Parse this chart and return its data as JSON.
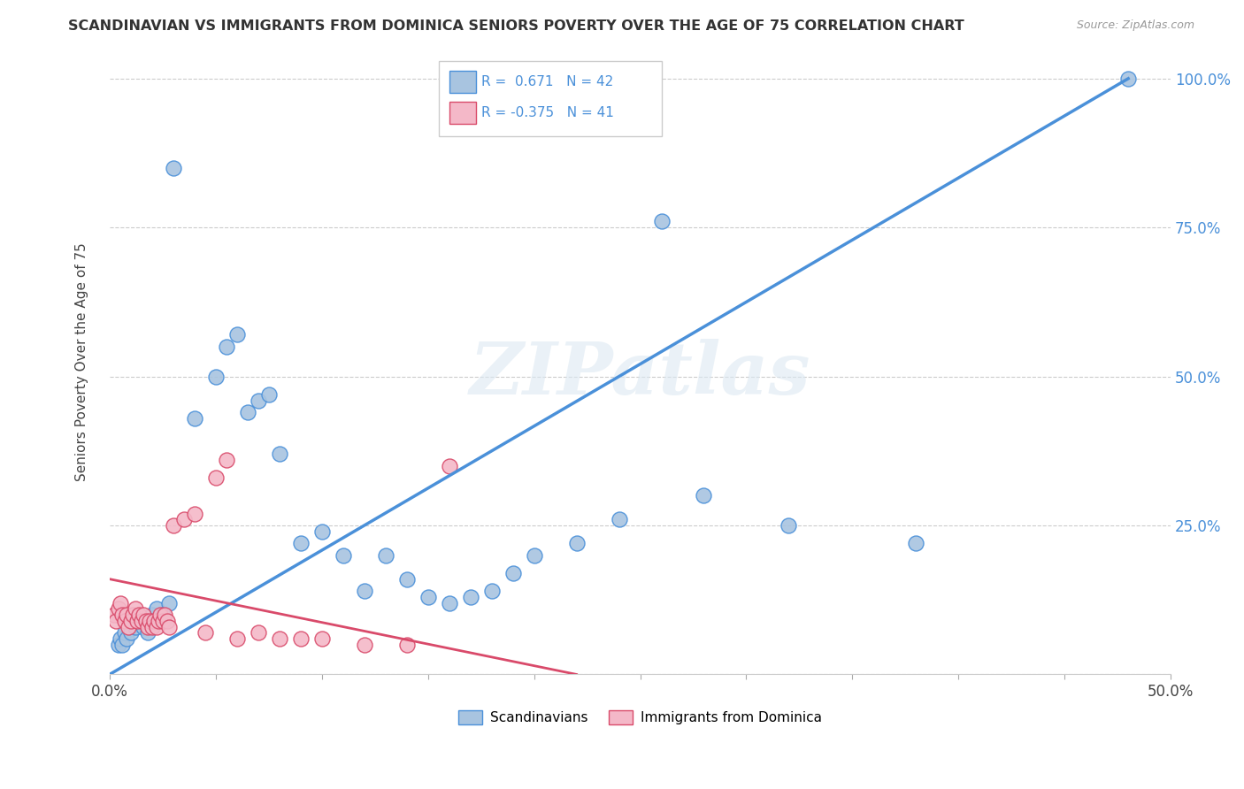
{
  "title": "SCANDINAVIAN VS IMMIGRANTS FROM DOMINICA SENIORS POVERTY OVER THE AGE OF 75 CORRELATION CHART",
  "source": "Source: ZipAtlas.com",
  "ylabel": "Seniors Poverty Over the Age of 75",
  "xlim": [
    0.0,
    0.5
  ],
  "ylim": [
    0.0,
    1.05
  ],
  "xticks": [
    0.0,
    0.05,
    0.1,
    0.15,
    0.2,
    0.25,
    0.3,
    0.35,
    0.4,
    0.45,
    0.5
  ],
  "xticklabels": [
    "0.0%",
    "",
    "",
    "",
    "",
    "",
    "",
    "",
    "",
    "",
    "50.0%"
  ],
  "ytick_positions": [
    0.0,
    0.25,
    0.5,
    0.75,
    1.0
  ],
  "yticklabels": [
    "",
    "25.0%",
    "50.0%",
    "75.0%",
    "100.0%"
  ],
  "watermark": "ZIPatlas",
  "blue_R": 0.671,
  "blue_N": 42,
  "pink_R": -0.375,
  "pink_N": 41,
  "blue_color": "#a8c4e0",
  "pink_color": "#f4b8c8",
  "blue_line_color": "#4a90d9",
  "pink_line_color": "#d94a6a",
  "legend_blue_label": "Scandinavians",
  "legend_pink_label": "Immigrants from Dominica",
  "blue_scatter_x": [
    0.004,
    0.005,
    0.006,
    0.007,
    0.008,
    0.01,
    0.012,
    0.014,
    0.016,
    0.018,
    0.02,
    0.022,
    0.025,
    0.028,
    0.03,
    0.04,
    0.05,
    0.055,
    0.06,
    0.065,
    0.07,
    0.075,
    0.08,
    0.09,
    0.1,
    0.11,
    0.12,
    0.13,
    0.14,
    0.15,
    0.16,
    0.17,
    0.18,
    0.19,
    0.2,
    0.22,
    0.24,
    0.26,
    0.28,
    0.32,
    0.38,
    0.48
  ],
  "blue_scatter_y": [
    0.05,
    0.06,
    0.05,
    0.07,
    0.06,
    0.07,
    0.08,
    0.09,
    0.08,
    0.07,
    0.1,
    0.11,
    0.1,
    0.12,
    0.85,
    0.43,
    0.5,
    0.55,
    0.57,
    0.44,
    0.46,
    0.47,
    0.37,
    0.22,
    0.24,
    0.2,
    0.14,
    0.2,
    0.16,
    0.13,
    0.12,
    0.13,
    0.14,
    0.17,
    0.2,
    0.22,
    0.26,
    0.76,
    0.3,
    0.25,
    0.22,
    1.0
  ],
  "pink_scatter_x": [
    0.002,
    0.003,
    0.004,
    0.005,
    0.006,
    0.007,
    0.008,
    0.009,
    0.01,
    0.011,
    0.012,
    0.013,
    0.014,
    0.015,
    0.016,
    0.017,
    0.018,
    0.019,
    0.02,
    0.021,
    0.022,
    0.023,
    0.024,
    0.025,
    0.026,
    0.027,
    0.028,
    0.03,
    0.035,
    0.04,
    0.045,
    0.05,
    0.055,
    0.06,
    0.07,
    0.08,
    0.09,
    0.1,
    0.12,
    0.14,
    0.16
  ],
  "pink_scatter_y": [
    0.1,
    0.09,
    0.11,
    0.12,
    0.1,
    0.09,
    0.1,
    0.08,
    0.09,
    0.1,
    0.11,
    0.09,
    0.1,
    0.09,
    0.1,
    0.09,
    0.08,
    0.09,
    0.08,
    0.09,
    0.08,
    0.09,
    0.1,
    0.09,
    0.1,
    0.09,
    0.08,
    0.25,
    0.26,
    0.27,
    0.07,
    0.33,
    0.36,
    0.06,
    0.07,
    0.06,
    0.06,
    0.06,
    0.05,
    0.05,
    0.35
  ],
  "blue_line_x": [
    0.0,
    0.48
  ],
  "blue_line_y": [
    0.0,
    1.0
  ],
  "pink_line_x": [
    0.0,
    0.22
  ],
  "pink_line_y": [
    0.16,
    0.0
  ]
}
